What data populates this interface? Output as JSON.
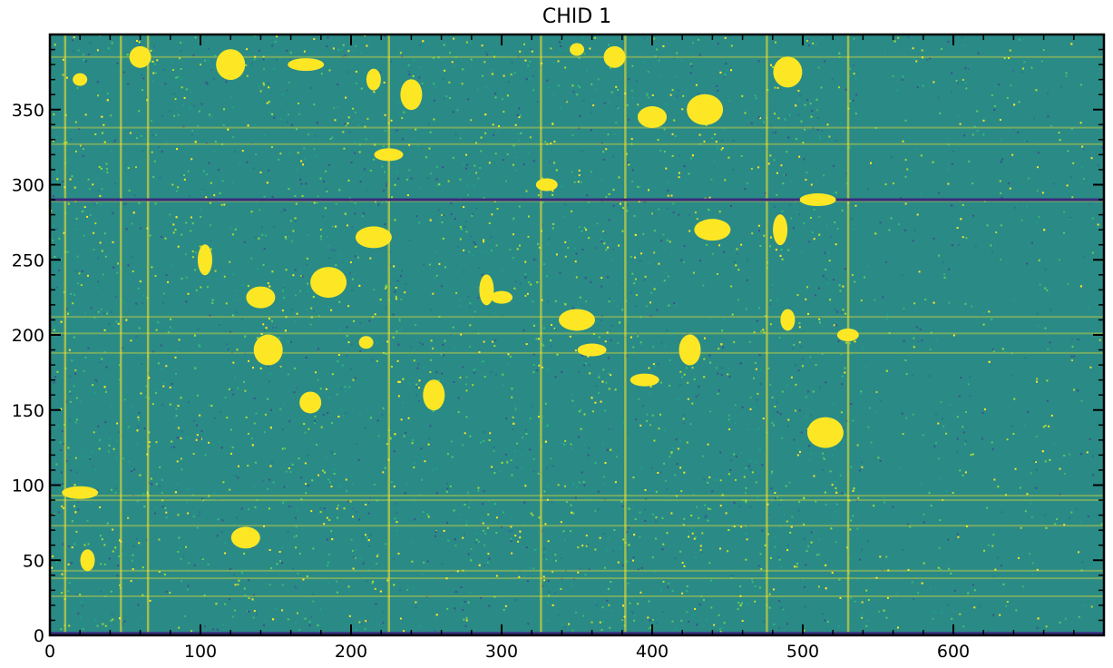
{
  "chart_data": {
    "type": "heatmap",
    "title": "CHID 1",
    "xlabel": "",
    "ylabel": "",
    "xlim": [
      0,
      700
    ],
    "ylim": [
      0,
      400
    ],
    "x_ticks": [
      0,
      100,
      200,
      300,
      400,
      500,
      600
    ],
    "y_ticks": [
      0,
      50,
      100,
      150,
      200,
      250,
      300,
      350
    ],
    "colormap": "viridis",
    "colors": {
      "background_noise": "#2a8a86",
      "bright": "#fde725",
      "dark": "#3b2a7e",
      "mid": "#21918c"
    },
    "grid": false,
    "features": {
      "bright_vertical_columns_x": [
        10,
        47,
        65,
        225,
        326,
        382,
        476,
        530
      ],
      "bright_horizontal_rows_y": [
        26,
        38,
        43,
        73,
        90,
        93,
        188,
        201,
        212,
        289,
        327,
        338,
        385
      ],
      "dark_horizontal_row_y": 290,
      "dark_bottom_row_y": 1,
      "blobs_xy": [
        [
          20,
          370
        ],
        [
          60,
          385
        ],
        [
          120,
          380
        ],
        [
          170,
          380
        ],
        [
          215,
          370
        ],
        [
          240,
          360
        ],
        [
          225,
          320
        ],
        [
          215,
          265
        ],
        [
          103,
          250
        ],
        [
          330,
          300
        ],
        [
          400,
          345
        ],
        [
          435,
          350
        ],
        [
          350,
          390
        ],
        [
          375,
          385
        ],
        [
          490,
          375
        ],
        [
          510,
          290
        ],
        [
          490,
          210
        ],
        [
          425,
          190
        ],
        [
          395,
          170
        ],
        [
          350,
          210
        ],
        [
          290,
          230
        ],
        [
          300,
          225
        ],
        [
          140,
          225
        ],
        [
          185,
          235
        ],
        [
          210,
          195
        ],
        [
          173,
          155
        ],
        [
          145,
          190
        ],
        [
          20,
          95
        ],
        [
          25,
          50
        ],
        [
          255,
          160
        ],
        [
          360,
          190
        ],
        [
          440,
          270
        ],
        [
          485,
          270
        ],
        [
          530,
          200
        ],
        [
          130,
          65
        ],
        [
          515,
          135
        ]
      ]
    }
  }
}
